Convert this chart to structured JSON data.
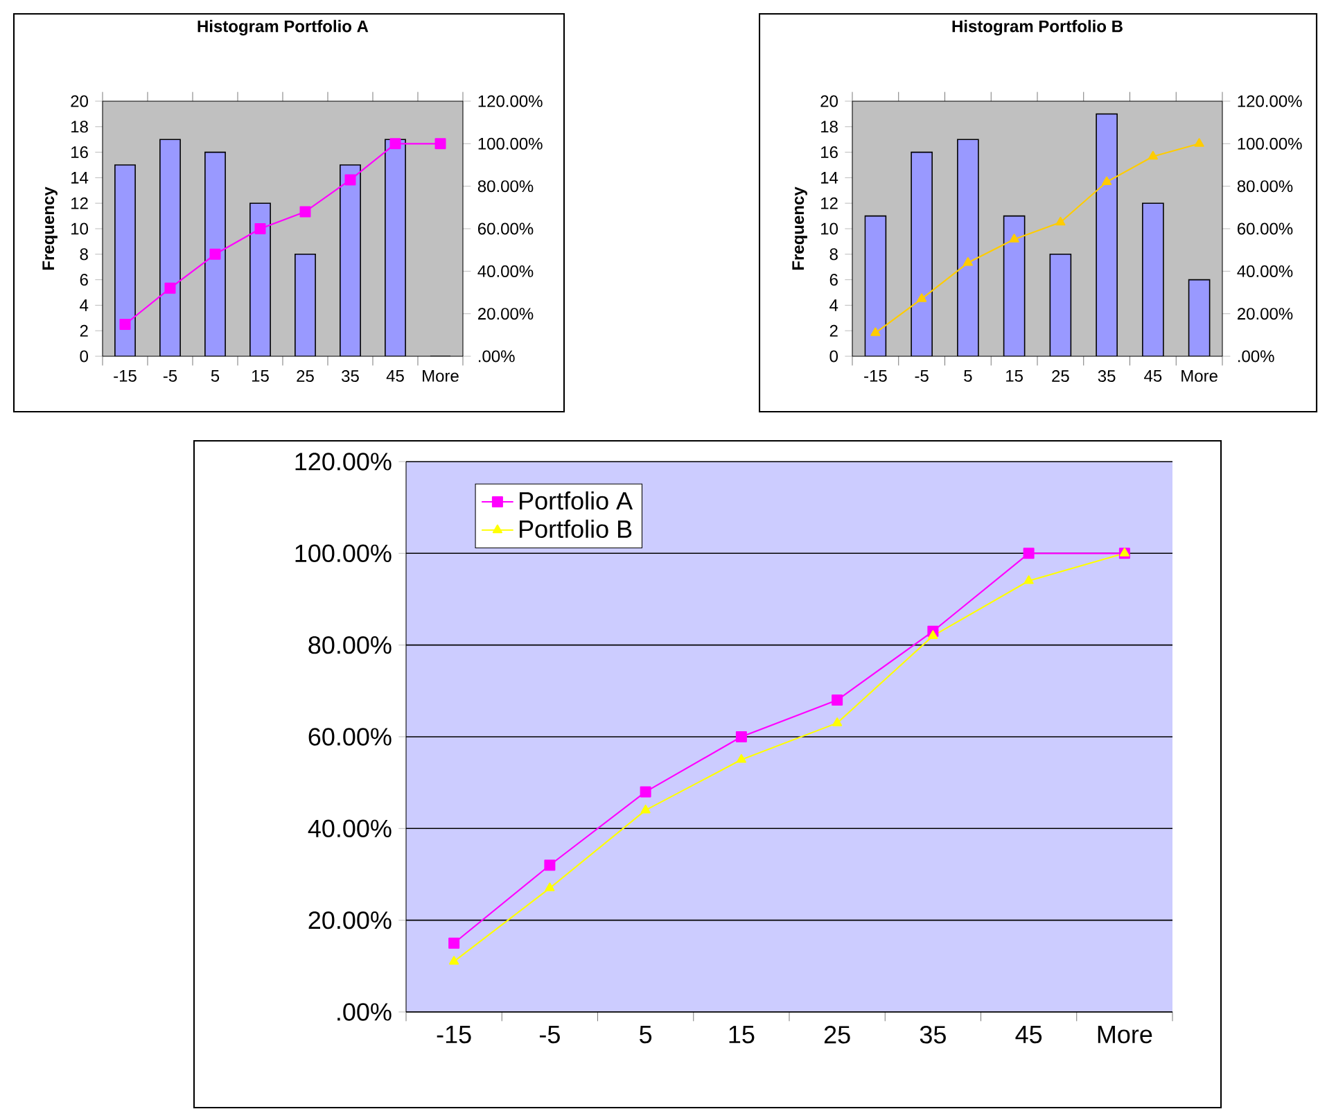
{
  "chart_data": [
    {
      "type": "bar",
      "title": "Histogram Portfolio A",
      "ylabel": "Frequency",
      "categories": [
        "-15",
        "-5",
        "5",
        "15",
        "25",
        "35",
        "45",
        "More"
      ],
      "series": [
        {
          "type": "bar",
          "color": "#9999ff",
          "values": [
            15,
            17,
            16,
            12,
            8,
            15,
            17,
            0
          ]
        },
        {
          "type": "line",
          "axis": "y2",
          "color": "#ff00ff",
          "marker": "square",
          "values": [
            15,
            32,
            48,
            60,
            68,
            83,
            100,
            100
          ]
        }
      ],
      "ylim": [
        0,
        20
      ],
      "yticks": [
        0,
        2,
        4,
        6,
        8,
        10,
        12,
        14,
        16,
        18,
        20
      ],
      "y2lim": [
        0,
        120
      ],
      "y2ticks": [
        {
          "value": 0,
          "label": ".00%"
        },
        {
          "value": 20,
          "label": "20.00%"
        },
        {
          "value": 40,
          "label": "40.00%"
        },
        {
          "value": 60,
          "label": "60.00%"
        },
        {
          "value": 80,
          "label": "80.00%"
        },
        {
          "value": 100,
          "label": "100.00%"
        },
        {
          "value": 120,
          "label": "120.00%"
        }
      ]
    },
    {
      "type": "bar",
      "title": "Histogram Portfolio B",
      "ylabel": "Frequency",
      "categories": [
        "-15",
        "-5",
        "5",
        "15",
        "25",
        "35",
        "45",
        "More"
      ],
      "series": [
        {
          "type": "bar",
          "color": "#9999ff",
          "values": [
            11,
            16,
            17,
            11,
            8,
            19,
            12,
            6
          ]
        },
        {
          "type": "line",
          "axis": "y2",
          "color": "#ffcc00",
          "marker": "triangle",
          "values": [
            11,
            27,
            44,
            55,
            63,
            82,
            94,
            100
          ]
        }
      ],
      "ylim": [
        0,
        20
      ],
      "yticks": [
        0,
        2,
        4,
        6,
        8,
        10,
        12,
        14,
        16,
        18,
        20
      ],
      "y2lim": [
        0,
        120
      ],
      "y2ticks": [
        {
          "value": 0,
          "label": ".00%"
        },
        {
          "value": 20,
          "label": "20.00%"
        },
        {
          "value": 40,
          "label": "40.00%"
        },
        {
          "value": 60,
          "label": "60.00%"
        },
        {
          "value": 80,
          "label": "80.00%"
        },
        {
          "value": 100,
          "label": "100.00%"
        },
        {
          "value": 120,
          "label": "120.00%"
        }
      ]
    },
    {
      "type": "line",
      "categories": [
        "-15",
        "-5",
        "5",
        "15",
        "25",
        "35",
        "45",
        "More"
      ],
      "series": [
        {
          "name": "Portfolio A",
          "color": "#ff00ff",
          "marker": "square",
          "values": [
            15,
            32,
            48,
            60,
            68,
            83,
            100,
            100
          ]
        },
        {
          "name": "Portfolio B",
          "color": "#ffff00",
          "marker": "triangle",
          "values": [
            11,
            27,
            44,
            55,
            63,
            82,
            94,
            100
          ]
        }
      ],
      "ylim": [
        0,
        120
      ],
      "yticks": [
        {
          "value": 0,
          "label": ".00%"
        },
        {
          "value": 20,
          "label": "20.00%"
        },
        {
          "value": 40,
          "label": "40.00%"
        },
        {
          "value": 60,
          "label": "60.00%"
        },
        {
          "value": 80,
          "label": "80.00%"
        },
        {
          "value": 100,
          "label": "100.00%"
        },
        {
          "value": 120,
          "label": "120.00%"
        }
      ],
      "grid": "y",
      "legend": "top left"
    }
  ]
}
